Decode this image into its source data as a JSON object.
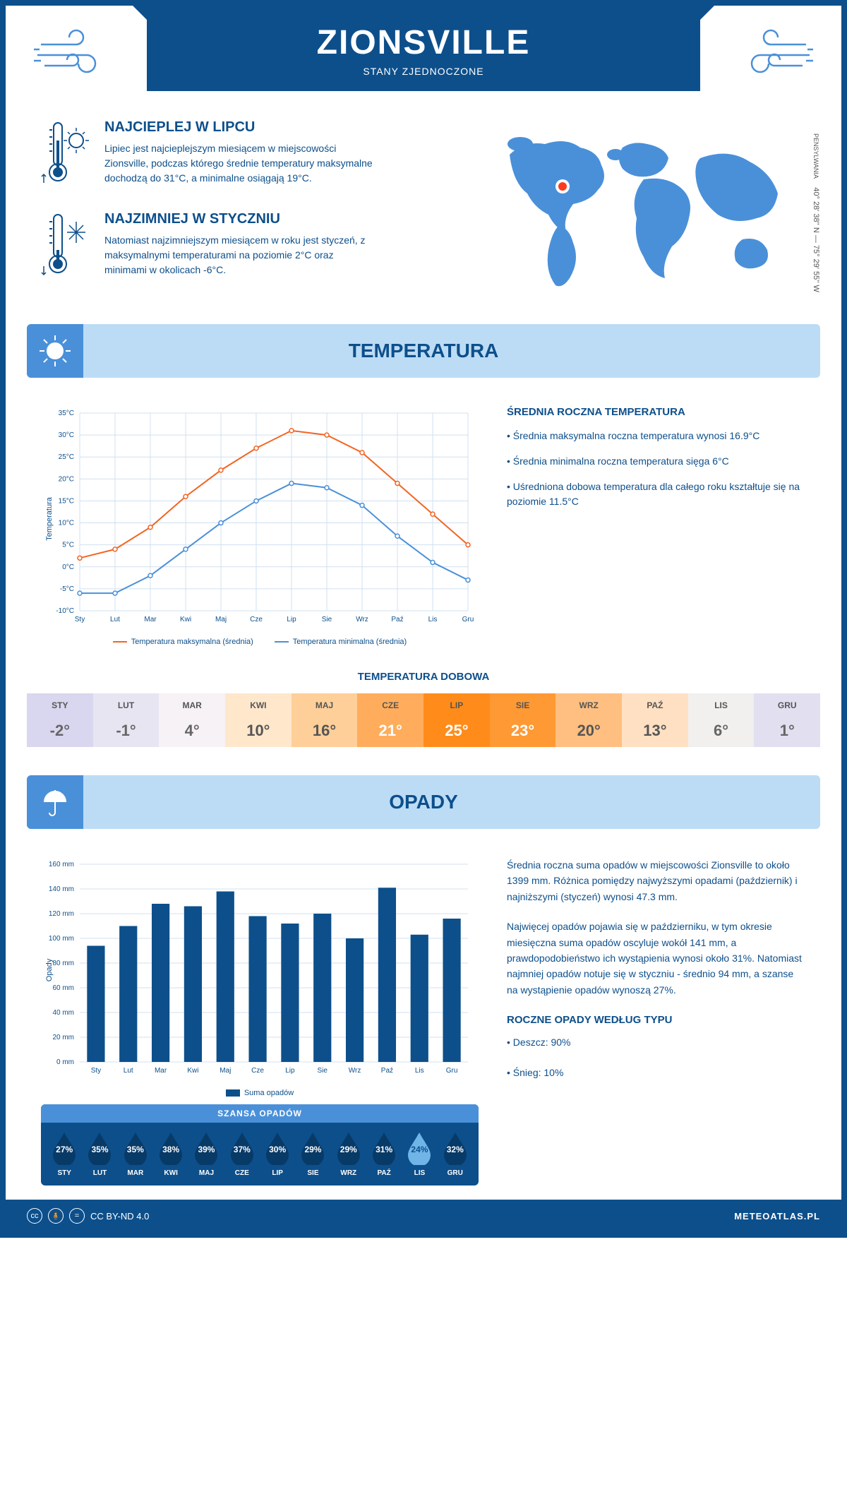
{
  "header": {
    "city": "ZIONSVILLE",
    "country": "STANY ZJEDNOCZONE"
  },
  "colors": {
    "primary": "#0d4f8b",
    "accent": "#4a90d9",
    "light_blue": "#bcdcf5",
    "orange": "#f26522",
    "line_blue": "#4a90d9",
    "marker_red": "#ff3b1f"
  },
  "intro": {
    "hot": {
      "title": "NAJCIEPLEJ W LIPCU",
      "text": "Lipiec jest najcieplejszym miesiącem w miejscowości Zionsville, podczas którego średnie temperatury maksymalne dochodzą do 31°C, a minimalne osiągają 19°C."
    },
    "cold": {
      "title": "NAJZIMNIEJ W STYCZNIU",
      "text": "Natomiast najzimniejszym miesiącem w roku jest styczeń, z maksymalnymi temperaturami na poziomie 2°C oraz minimami w okolicach -6°C."
    },
    "coords": "40° 28' 38'' N — 75° 29' 55'' W",
    "state": "PENSYLWANIA"
  },
  "temperature": {
    "section_title": "TEMPERATURA",
    "chart": {
      "type": "line",
      "months": [
        "Sty",
        "Lut",
        "Mar",
        "Kwi",
        "Maj",
        "Cze",
        "Lip",
        "Sie",
        "Wrz",
        "Paź",
        "Lis",
        "Gru"
      ],
      "max_series": {
        "label": "Temperatura maksymalna (średnia)",
        "color": "#f26522",
        "values": [
          2,
          4,
          9,
          16,
          22,
          27,
          31,
          30,
          26,
          19,
          12,
          5
        ]
      },
      "min_series": {
        "label": "Temperatura minimalna (średnia)",
        "color": "#4a90d9",
        "values": [
          -6,
          -6,
          -2,
          4,
          10,
          15,
          19,
          18,
          14,
          7,
          1,
          -3
        ]
      },
      "y_label": "Temperatura",
      "y_min": -10,
      "y_max": 35,
      "y_step": 5,
      "grid_color": "#d0e0f0",
      "background": "#ffffff",
      "line_width": 2,
      "marker": "circle",
      "marker_size": 3
    },
    "info": {
      "title": "ŚREDNIA ROCZNA TEMPERATURA",
      "bullets": [
        "Średnia maksymalna roczna temperatura wynosi 16.9°C",
        "Średnia minimalna roczna temperatura sięga 6°C",
        "Uśredniona dobowa temperatura dla całego roku kształtuje się na poziomie 11.5°C"
      ]
    },
    "daily": {
      "title": "TEMPERATURA DOBOWA",
      "months": [
        "STY",
        "LUT",
        "MAR",
        "KWI",
        "MAJ",
        "CZE",
        "LIP",
        "SIE",
        "WRZ",
        "PAŹ",
        "LIS",
        "GRU"
      ],
      "values": [
        "-2°",
        "-1°",
        "4°",
        "10°",
        "16°",
        "21°",
        "25°",
        "23°",
        "20°",
        "13°",
        "6°",
        "1°"
      ],
      "bg_colors": [
        "#d9d6ef",
        "#e8e5f2",
        "#f6f2f5",
        "#ffe7cc",
        "#ffcf99",
        "#ffad5c",
        "#ff8c1a",
        "#ff9933",
        "#ffbf80",
        "#ffe0c2",
        "#f2efef",
        "#e2dff0"
      ],
      "text_colors": [
        "#666",
        "#666",
        "#666",
        "#555",
        "#555",
        "#fff",
        "#fff",
        "#fff",
        "#555",
        "#555",
        "#666",
        "#666"
      ]
    }
  },
  "precipitation": {
    "section_title": "OPADY",
    "chart": {
      "type": "bar",
      "months": [
        "Sty",
        "Lut",
        "Mar",
        "Kwi",
        "Maj",
        "Cze",
        "Lip",
        "Sie",
        "Wrz",
        "Paź",
        "Lis",
        "Gru"
      ],
      "values": [
        94,
        110,
        128,
        126,
        138,
        118,
        112,
        120,
        100,
        141,
        103,
        116
      ],
      "bar_color": "#0d4f8b",
      "y_label": "Opady",
      "y_min": 0,
      "y_max": 160,
      "y_step": 20,
      "grid_color": "#d0e0f0",
      "legend": "Suma opadów",
      "bar_width": 0.55
    },
    "info": {
      "p1": "Średnia roczna suma opadów w miejscowości Zionsville to około 1399 mm. Różnica pomiędzy najwyższymi opadami (październik) i najniższymi (styczeń) wynosi 47.3 mm.",
      "p2": "Najwięcej opadów pojawia się w październiku, w tym okresie miesięczna suma opadów oscyluje wokół 141 mm, a prawdopodobieństwo ich wystąpienia wynosi około 31%. Natomiast najmniej opadów notuje się w styczniu - średnio 94 mm, a szanse na wystąpienie opadów wynoszą 27%.",
      "type_title": "ROCZNE OPADY WEDŁUG TYPU",
      "rain": "Deszcz: 90%",
      "snow": "Śnieg: 10%"
    },
    "chance": {
      "title": "SZANSA OPADÓW",
      "months": [
        "STY",
        "LUT",
        "MAR",
        "KWI",
        "MAJ",
        "CZE",
        "LIP",
        "SIE",
        "WRZ",
        "PAŹ",
        "LIS",
        "GRU"
      ],
      "values": [
        "27%",
        "35%",
        "35%",
        "38%",
        "39%",
        "37%",
        "30%",
        "29%",
        "29%",
        "31%",
        "24%",
        "32%"
      ],
      "min_index": 10,
      "drop_dark": "#083a68",
      "drop_light": "#6fb5e8"
    }
  },
  "footer": {
    "license": "CC BY-ND 4.0",
    "site": "METEOATLAS.PL"
  }
}
